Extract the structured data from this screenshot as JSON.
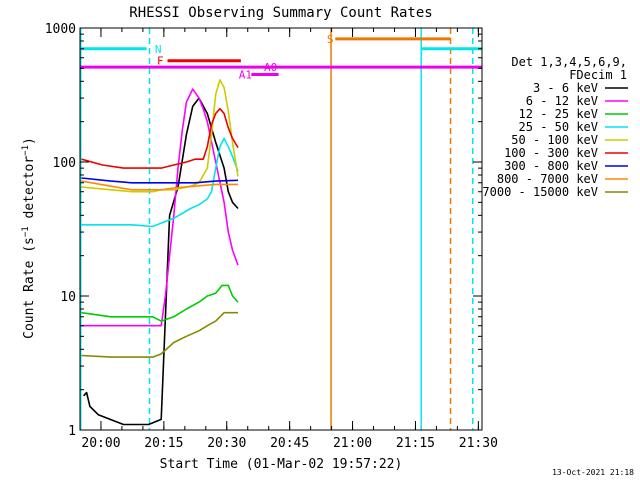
{
  "chart_data": {
    "type": "line",
    "title": "RHESSI Observing Summary Count Rates",
    "xlabel": "Start Time (01-Mar-02 19:57:22)",
    "ylabel": "Count Rate (s⁻¹ detector⁻¹)",
    "ylabel_main": "Count Rate (s",
    "ylabel_sup1": "−1",
    "ylabel_mid": " detector",
    "ylabel_sup2": "−1",
    "ylabel_end": ")",
    "y_scale": "log",
    "ylim": [
      1,
      1000
    ],
    "x_unit": "minutes since 19:57:22",
    "xlim": [
      -2.37,
      93.5
    ],
    "x_ticks": [
      {
        "label": "20:00",
        "value": 2.63
      },
      {
        "label": "20:15",
        "value": 17.63
      },
      {
        "label": "20:30",
        "value": 32.63
      },
      {
        "label": "20:45",
        "value": 47.63
      },
      {
        "label": "21:00",
        "value": 62.63
      },
      {
        "label": "21:15",
        "value": 77.63
      },
      {
        "label": "21:30",
        "value": 92.63
      }
    ],
    "y_ticks": [
      {
        "label": "1",
        "value": 1
      },
      {
        "label": "10",
        "value": 10
      },
      {
        "label": "100",
        "value": 100
      },
      {
        "label": "1000",
        "value": 1000
      }
    ],
    "legend_title_1": "Det 1,3,4,5,6,9,",
    "legend_title_2": "FDecim 1",
    "legend_position": "right",
    "series": [
      {
        "name": "3 - 6 keV",
        "color": "#000000",
        "x": [
          -1.5,
          -0.8,
          0,
          2,
          8,
          14,
          17,
          19,
          21,
          23,
          24.5,
          26,
          28,
          30,
          32,
          33,
          34,
          35.3
        ],
        "y": [
          1.8,
          1.9,
          1.5,
          1.3,
          1.1,
          1.1,
          1.2,
          40,
          65,
          160,
          260,
          300,
          230,
          140,
          90,
          60,
          50,
          45
        ]
      },
      {
        "name": "6 - 12 keV",
        "color": "#ff00ff",
        "x": [
          -2,
          0,
          5,
          10,
          15,
          17,
          18,
          19,
          20,
          21,
          22,
          23,
          24.5,
          26,
          27,
          28,
          30,
          32,
          33,
          34,
          35.3
        ],
        "y": [
          6,
          6,
          6,
          6,
          6,
          6,
          10,
          20,
          40,
          90,
          170,
          280,
          350,
          300,
          250,
          200,
          100,
          50,
          30,
          22,
          17
        ]
      },
      {
        "name": "12 - 25 keV",
        "color": "#00cc00",
        "x": [
          -2,
          5,
          10,
          15,
          17,
          20,
          23,
          26,
          28,
          30,
          31.5,
          33,
          34,
          35.3
        ],
        "y": [
          7.5,
          7,
          7,
          7,
          6.5,
          7,
          8,
          9,
          10,
          10.5,
          12,
          12,
          10,
          9
        ]
      },
      {
        "name": "25 - 50 keV",
        "color": "#00e5ee",
        "x": [
          -2,
          5,
          10,
          15,
          17,
          20,
          24,
          26,
          28,
          29,
          30,
          31,
          32,
          33,
          34,
          35.3
        ],
        "y": [
          34,
          34,
          34,
          33,
          35,
          38,
          45,
          48,
          53,
          60,
          90,
          130,
          150,
          130,
          110,
          85
        ]
      },
      {
        "name": "50 - 100 keV",
        "color": "#cccc00",
        "x": [
          -2,
          5,
          10,
          15,
          17,
          20,
          24,
          26,
          28,
          29,
          30,
          31,
          32,
          33,
          34,
          35.3
        ],
        "y": [
          65,
          62,
          60,
          60,
          62,
          62,
          66,
          70,
          90,
          160,
          320,
          410,
          360,
          240,
          140,
          78
        ]
      },
      {
        "name": "100 - 300 keV",
        "color": "#ee0000",
        "x": [
          -2,
          3,
          8,
          13,
          17,
          20,
          23,
          25,
          27,
          28,
          29,
          30,
          31,
          32,
          33,
          34,
          35.3
        ],
        "y": [
          105,
          95,
          90,
          90,
          90,
          95,
          100,
          105,
          105,
          130,
          190,
          230,
          250,
          230,
          180,
          150,
          128
        ]
      },
      {
        "name": "300 - 800 keV",
        "color": "#0000ee",
        "x": [
          -2,
          5,
          10,
          15,
          17,
          20,
          25,
          30,
          35.3
        ],
        "y": [
          76,
          72,
          70,
          70,
          70,
          70,
          70,
          72,
          73
        ]
      },
      {
        "name": "800 - 7000 keV",
        "color": "#ff8800",
        "x": [
          -2,
          5,
          10,
          15,
          17,
          20,
          25,
          30,
          35.3
        ],
        "y": [
          72,
          66,
          62,
          62,
          62,
          64,
          66,
          68,
          68
        ]
      },
      {
        "name": "7000 - 15000 keV",
        "color": "#888800",
        "x": [
          -2,
          5,
          10,
          15,
          17,
          20,
          23,
          26,
          28,
          30,
          32,
          35.3
        ],
        "y": [
          3.6,
          3.5,
          3.5,
          3.5,
          3.7,
          4.5,
          5,
          5.5,
          6,
          6.5,
          7.5,
          7.5
        ]
      }
    ],
    "annotations": {
      "night_marker": "N",
      "flare_marker": "F",
      "attenuator_0": "A0",
      "attenuator_1": "A1",
      "saa_marker": "S"
    },
    "bars": [
      {
        "label": "N",
        "color": "#00e5ee",
        "y": 700,
        "x_from": -2.37,
        "x_to": 13.5,
        "label_x": 15.5
      },
      {
        "label": "N",
        "color": "#00e5ee",
        "y": 700,
        "x_from": 79,
        "x_to": 93.5,
        "label_x": null
      },
      {
        "label": "F",
        "color": "#ee0000",
        "y": 570,
        "x_from": 18.5,
        "x_to": 36,
        "label_x": 16
      },
      {
        "label": "A0",
        "color": "#ee00ee",
        "y": 510,
        "x_from": -2.37,
        "x_to": 93.5,
        "label_x": 41.5
      },
      {
        "label": "A1",
        "color": "#ee00ee",
        "y": 450,
        "x_from": 38.5,
        "x_to": 45,
        "label_x": 35.5
      },
      {
        "label": "S",
        "color": "#ee7700",
        "y": 830,
        "x_from": 58.5,
        "x_to": 86,
        "label_x": 56.5
      }
    ],
    "vertical_lines": [
      {
        "color": "#00e5ee",
        "x": -2.2,
        "style": "solid"
      },
      {
        "color": "#00e5ee",
        "x": 14.2,
        "style": "dashed"
      },
      {
        "color": "#00e5ee",
        "x": 79.0,
        "style": "solid"
      },
      {
        "color": "#00e5ee",
        "x": 91.3,
        "style": "dashed"
      },
      {
        "color": "#ee7700",
        "x": 57.5,
        "style": "solid"
      },
      {
        "color": "#ee7700",
        "x": 86.0,
        "style": "dashed"
      }
    ]
  },
  "footer_timestamp": "13-Oct-2021 21:18"
}
